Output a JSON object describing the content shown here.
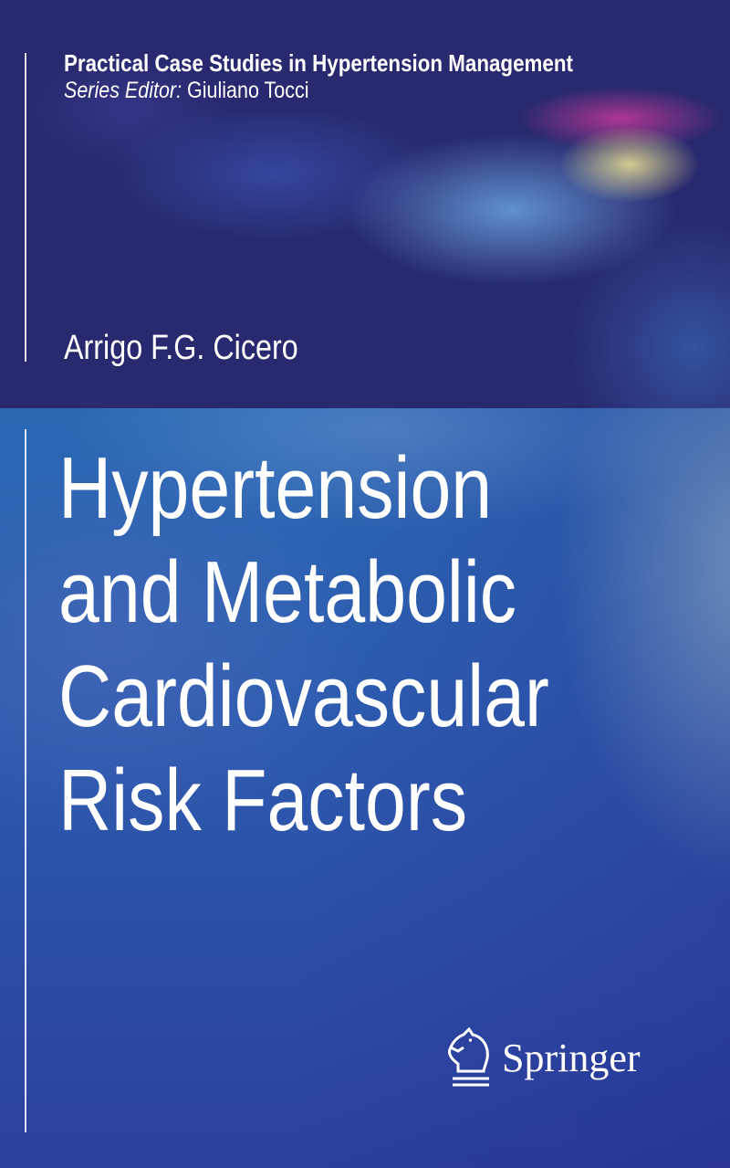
{
  "series": {
    "title": "Practical Case Studies in Hypertension Management",
    "editor_label": "Series Editor:",
    "editor_name": "Giuliano Tocci"
  },
  "author": "Arrigo F.G. Cicero",
  "title_lines": [
    "Hypertension",
    "and Metabolic",
    "Cardiovascular",
    "Risk Factors"
  ],
  "publisher": {
    "name": "Springer",
    "logo_icon": "knight-horse-icon"
  },
  "colors": {
    "top_band": "#28296e",
    "background": "#2a68b4",
    "text": "#ffffff"
  }
}
